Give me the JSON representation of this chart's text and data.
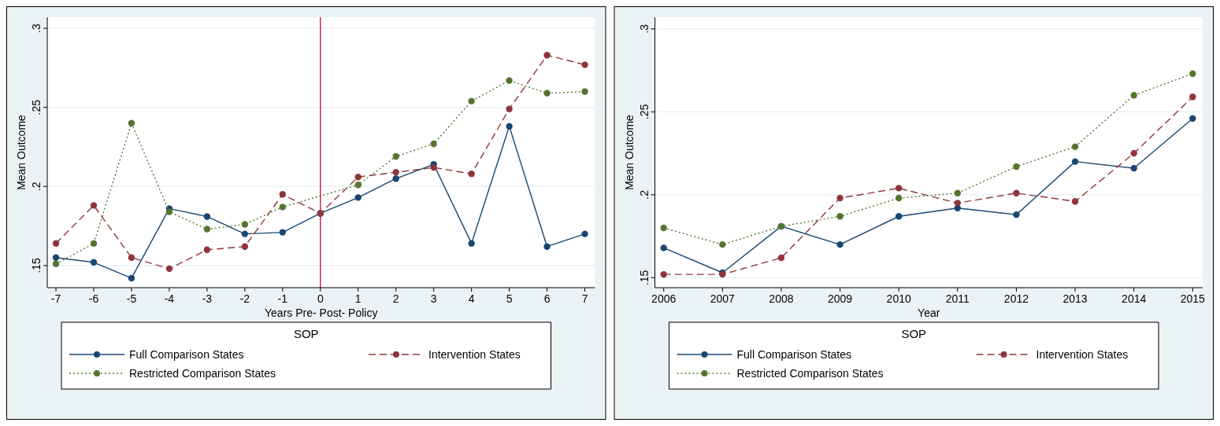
{
  "chart_data": [
    {
      "type": "line",
      "xlabel": "Years Pre- Post- Policy",
      "ylabel": "Mean Outcome",
      "legend_title": "SOP",
      "legend": "bottom",
      "grid": "y",
      "marker": "circle",
      "x": [
        -7,
        -6,
        -5,
        -4,
        -3,
        -2,
        -1,
        0,
        1,
        2,
        3,
        4,
        5,
        6,
        7
      ],
      "xlim": [
        -7.23,
        7.27
      ],
      "xticks": [
        -7,
        -6,
        -5,
        -4,
        -3,
        -2,
        -1,
        0,
        1,
        2,
        3,
        4,
        5,
        6,
        7
      ],
      "ylim": [
        0.136,
        0.307
      ],
      "yticks": [
        {
          "value": 0.15,
          "label": ".15"
        },
        {
          "value": 0.2,
          "label": ".2"
        },
        {
          "value": 0.25,
          "label": ".25"
        },
        {
          "value": 0.3,
          "label": ".3"
        }
      ],
      "ref_lines": [
        {
          "axis": "x",
          "value": 0,
          "color": "#c10534",
          "line_style": "solid"
        }
      ],
      "series": [
        {
          "name": "Full Comparison States",
          "color": "#1a476f",
          "line_style": "solid",
          "values": [
            0.155,
            0.152,
            0.142,
            0.186,
            0.181,
            0.17,
            0.171,
            0.183,
            0.193,
            0.205,
            0.214,
            0.164,
            0.238,
            0.162,
            0.17
          ]
        },
        {
          "name": "Intervention States",
          "color": "#90353b",
          "line_style": "dashed",
          "values": [
            0.164,
            0.188,
            0.155,
            0.148,
            0.16,
            0.162,
            0.195,
            0.183,
            0.206,
            0.209,
            0.212,
            0.208,
            0.249,
            0.283,
            0.277
          ]
        },
        {
          "name": "Restricted Comparison States",
          "color": "#55752f",
          "line_style": "dotted",
          "values": [
            0.151,
            0.164,
            0.24,
            0.184,
            0.173,
            0.176,
            0.187,
            null,
            0.201,
            0.219,
            0.227,
            0.254,
            0.267,
            0.259,
            0.26
          ]
        }
      ]
    },
    {
      "type": "line",
      "xlabel": "Year",
      "ylabel": "Mean Outcome",
      "legend_title": "SOP",
      "legend": "bottom",
      "grid": "y",
      "marker": "circle",
      "x": [
        2006,
        2007,
        2008,
        2009,
        2010,
        2011,
        2012,
        2013,
        2014,
        2015
      ],
      "xlim": [
        2005.85,
        2015.17
      ],
      "xticks": [
        2006,
        2007,
        2008,
        2009,
        2010,
        2011,
        2012,
        2013,
        2014,
        2015
      ],
      "ylim": [
        0.144,
        0.307
      ],
      "yticks": [
        {
          "value": 0.15,
          "label": ".15"
        },
        {
          "value": 0.2,
          "label": ".2"
        },
        {
          "value": 0.25,
          "label": ".25"
        },
        {
          "value": 0.3,
          "label": ".3"
        }
      ],
      "series": [
        {
          "name": "Full Comparison States",
          "color": "#1a476f",
          "line_style": "solid",
          "values": [
            0.168,
            0.153,
            0.181,
            0.17,
            0.187,
            0.192,
            0.188,
            0.22,
            0.216,
            0.246
          ]
        },
        {
          "name": "Intervention States",
          "color": "#90353b",
          "line_style": "dashed",
          "values": [
            0.152,
            0.152,
            0.162,
            0.198,
            0.204,
            0.195,
            0.201,
            0.196,
            0.225,
            0.259
          ]
        },
        {
          "name": "Restricted Comparison States",
          "color": "#55752f",
          "line_style": "dotted",
          "values": [
            0.18,
            0.17,
            0.181,
            0.187,
            0.198,
            0.201,
            0.217,
            0.229,
            0.26,
            0.273
          ]
        }
      ]
    }
  ]
}
